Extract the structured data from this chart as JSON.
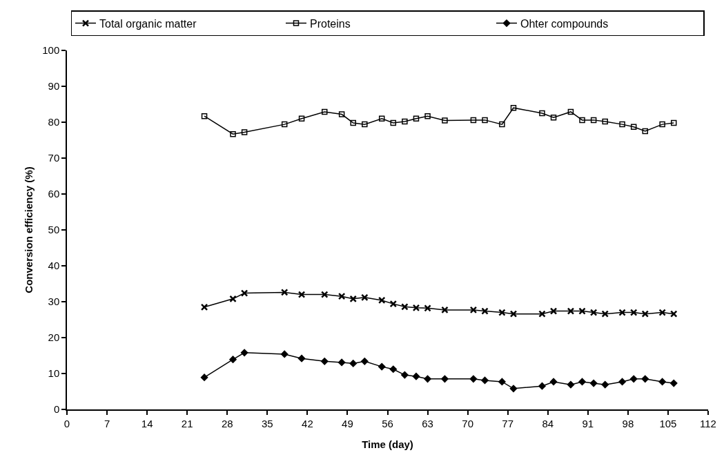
{
  "chart_data": {
    "type": "line",
    "xlabel": "Time (day)",
    "ylabel": "Conversion efficiency (%)",
    "x": [
      24,
      29,
      31,
      38,
      41,
      45,
      48,
      50,
      52,
      55,
      57,
      59,
      61,
      63,
      66,
      71,
      73,
      76,
      78,
      83,
      85,
      88,
      90,
      92,
      94,
      97,
      99,
      101,
      104,
      106
    ],
    "series": [
      {
        "name": "Total organic matter",
        "color": "#000000",
        "marker": "cross",
        "values": [
          28.5,
          30.8,
          32.4,
          32.6,
          32.0,
          32.0,
          31.5,
          30.8,
          31.2,
          30.4,
          29.4,
          28.6,
          28.3,
          28.2,
          27.7,
          27.7,
          27.4,
          27.0,
          26.6,
          26.6,
          27.4,
          27.4,
          27.4,
          27.0,
          26.6,
          27.0,
          27.0,
          26.6,
          27.0,
          26.6
        ]
      },
      {
        "name": "Proteins",
        "color": "#000000",
        "marker": "square",
        "values": [
          81.7,
          76.7,
          77.2,
          79.4,
          81.0,
          82.9,
          82.2,
          79.8,
          79.4,
          81.0,
          79.8,
          80.2,
          81.0,
          81.7,
          80.5,
          80.6,
          80.6,
          79.4,
          84.0,
          82.5,
          81.3,
          82.9,
          80.6,
          80.6,
          80.2,
          79.4,
          78.7,
          77.5,
          79.4,
          79.8
        ]
      },
      {
        "name": "Ohter compounds",
        "color": "#000000",
        "marker": "diamond",
        "values": [
          8.9,
          13.9,
          15.8,
          15.4,
          14.2,
          13.4,
          13.1,
          12.8,
          13.4,
          11.9,
          11.2,
          9.6,
          9.2,
          8.5,
          8.5,
          8.5,
          8.1,
          7.7,
          5.8,
          6.5,
          7.7,
          6.9,
          7.7,
          7.3,
          6.9,
          7.7,
          8.5,
          8.5,
          7.7,
          7.3
        ]
      }
    ],
    "xlim": [
      0,
      112
    ],
    "xticks": [
      0,
      7,
      14,
      21,
      28,
      35,
      42,
      49,
      56,
      63,
      70,
      77,
      84,
      91,
      98,
      105,
      112
    ],
    "ylim": [
      0,
      100
    ],
    "yticks": [
      0,
      10,
      20,
      30,
      40,
      50,
      60,
      70,
      80,
      90,
      100
    ],
    "legend": "top",
    "line_style": "solid"
  }
}
